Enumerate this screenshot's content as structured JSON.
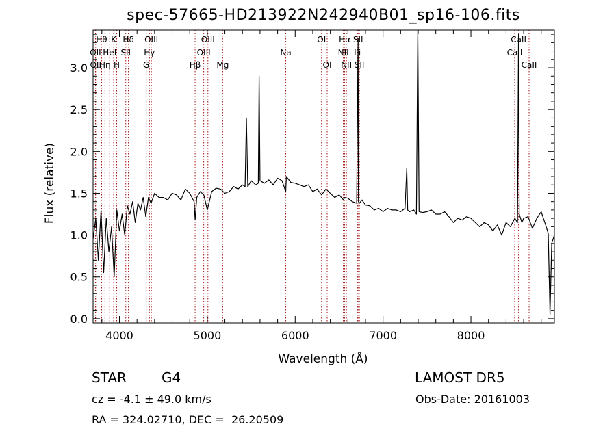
{
  "header": {
    "title": "spec-57665-HD213922N242940B01_sp16-106.fits"
  },
  "footer": {
    "object_class": "STAR",
    "subclass": "G4",
    "survey": "LAMOST DR5",
    "cz": "cz = -4.1 ± 49.0 km/s",
    "obs_date": "Obs-Date: 20161003",
    "radec": "RA = 324.02710, DEC =  26.20509"
  },
  "colors": {
    "line_marker": "#a01010",
    "spectrum": "#000000"
  },
  "chart_data": {
    "type": "line",
    "title": "spec-57665-HD213922N242940B01_sp16-106.fits",
    "xlabel": "Wavelength (Å)",
    "ylabel": "Flux (relative)",
    "xlim": [
      3700,
      8950
    ],
    "ylim": [
      -0.05,
      3.45
    ],
    "xticks": [
      4000,
      5000,
      6000,
      7000,
      8000
    ],
    "yticks": [
      0.0,
      0.5,
      1.0,
      1.5,
      2.0,
      2.5,
      3.0
    ],
    "ytick_labels": [
      "0.0",
      "0.5",
      "1.0",
      "1.5",
      "2.0",
      "2.5",
      "3.0"
    ],
    "grid": false,
    "line_markers": [
      {
        "label": "Hθ",
        "wavelength": 3797,
        "row": 0
      },
      {
        "label": "OII",
        "wavelength": 3727,
        "row": 1
      },
      {
        "label": "OII",
        "wavelength": 3729,
        "row": 2
      },
      {
        "label": "Hη",
        "wavelength": 3835,
        "row": 2
      },
      {
        "label": "HeI",
        "wavelength": 3889,
        "row": 1
      },
      {
        "label": "K",
        "wavelength": 3934,
        "row": 0
      },
      {
        "label": "H",
        "wavelength": 3969,
        "row": 2
      },
      {
        "label": "Hδ",
        "wavelength": 4102,
        "row": 0
      },
      {
        "label": "SII",
        "wavelength": 4072,
        "row": 1
      },
      {
        "label": "OIII",
        "wavelength": 4363,
        "row": 0
      },
      {
        "label": "Hγ",
        "wavelength": 4341,
        "row": 1
      },
      {
        "label": "G",
        "wavelength": 4305,
        "row": 2
      },
      {
        "label": "Hβ",
        "wavelength": 4861,
        "row": 2
      },
      {
        "label": "OIII",
        "wavelength": 5007,
        "row": 0
      },
      {
        "label": "OIII",
        "wavelength": 4959,
        "row": 1
      },
      {
        "label": "Mg",
        "wavelength": 5175,
        "row": 2
      },
      {
        "label": "Na",
        "wavelength": 5893,
        "row": 1
      },
      {
        "label": "OI",
        "wavelength": 6300,
        "row": 0
      },
      {
        "label": "OI",
        "wavelength": 6364,
        "row": 2
      },
      {
        "label": "Hα",
        "wavelength": 6563,
        "row": 0
      },
      {
        "label": "NII",
        "wavelength": 6548,
        "row": 1
      },
      {
        "label": "NII",
        "wavelength": 6583,
        "row": 2
      },
      {
        "label": "SII",
        "wavelength": 6716,
        "row": 0
      },
      {
        "label": "Li",
        "wavelength": 6708,
        "row": 1
      },
      {
        "label": "SII",
        "wavelength": 6731,
        "row": 2
      },
      {
        "label": "CaII",
        "wavelength": 8542,
        "row": 0
      },
      {
        "label": "CaII",
        "wavelength": 8498,
        "row": 1
      },
      {
        "label": "CaII",
        "wavelength": 8662,
        "row": 2
      }
    ],
    "series": [
      {
        "x": [
          3700,
          3730,
          3760,
          3790,
          3820,
          3850,
          3880,
          3910,
          3940,
          3970,
          4000,
          4030,
          4060,
          4090,
          4120,
          4150,
          4180,
          4210,
          4240,
          4270,
          4300,
          4330,
          4360,
          4400,
          4450,
          4500,
          4550,
          4600,
          4650,
          4700,
          4750,
          4800,
          4850,
          4861,
          4880,
          4920,
          4960,
          5000,
          5050,
          5100,
          5150,
          5200,
          5250,
          5300,
          5350,
          5400,
          5430,
          5445,
          5460,
          5500,
          5550,
          5580,
          5590,
          5600,
          5650,
          5700,
          5750,
          5800,
          5850,
          5893,
          5900,
          5950,
          6000,
          6050,
          6100,
          6150,
          6200,
          6250,
          6300,
          6350,
          6400,
          6450,
          6500,
          6550,
          6563,
          6600,
          6650,
          6700,
          6716,
          6720,
          6730,
          6760,
          6800,
          6850,
          6900,
          6950,
          7000,
          7050,
          7100,
          7150,
          7200,
          7250,
          7270,
          7280,
          7300,
          7350,
          7380,
          7395,
          7410,
          7450,
          7500,
          7550,
          7600,
          7650,
          7700,
          7750,
          7800,
          7850,
          7900,
          7950,
          8000,
          8050,
          8100,
          8150,
          8200,
          8250,
          8300,
          8350,
          8400,
          8450,
          8500,
          8530,
          8542,
          8550,
          8580,
          8600,
          8650,
          8700,
          8750,
          8800,
          8850,
          8880,
          8900,
          8920,
          8950
        ],
        "y": [
          0.95,
          1.2,
          0.7,
          1.3,
          0.55,
          1.2,
          0.8,
          1.1,
          0.5,
          1.3,
          1.05,
          1.25,
          1.0,
          1.35,
          1.25,
          1.4,
          1.15,
          1.38,
          1.3,
          1.45,
          1.22,
          1.45,
          1.38,
          1.5,
          1.45,
          1.45,
          1.42,
          1.5,
          1.48,
          1.42,
          1.55,
          1.5,
          1.4,
          1.18,
          1.45,
          1.52,
          1.48,
          1.3,
          1.52,
          1.56,
          1.55,
          1.5,
          1.52,
          1.58,
          1.55,
          1.6,
          1.58,
          2.4,
          1.58,
          1.65,
          1.6,
          1.62,
          2.9,
          1.65,
          1.62,
          1.66,
          1.6,
          1.68,
          1.65,
          1.52,
          1.7,
          1.63,
          1.62,
          1.6,
          1.58,
          1.6,
          1.52,
          1.55,
          1.48,
          1.55,
          1.5,
          1.45,
          1.48,
          1.42,
          1.45,
          1.44,
          1.4,
          1.38,
          3.35,
          1.4,
          1.38,
          1.42,
          1.36,
          1.35,
          1.3,
          1.32,
          1.28,
          1.32,
          1.3,
          1.3,
          1.28,
          1.32,
          1.8,
          1.3,
          1.28,
          1.3,
          1.25,
          3.5,
          1.28,
          1.27,
          1.28,
          1.3,
          1.25,
          1.25,
          1.28,
          1.22,
          1.15,
          1.2,
          1.18,
          1.22,
          1.2,
          1.15,
          1.1,
          1.15,
          1.12,
          1.05,
          1.12,
          1.0,
          1.15,
          1.1,
          1.2,
          1.15,
          3.4,
          1.25,
          1.15,
          1.2,
          1.22,
          1.08,
          1.2,
          1.28,
          1.12,
          1.02,
          0.05,
          0.9,
          1.0
        ]
      }
    ]
  }
}
